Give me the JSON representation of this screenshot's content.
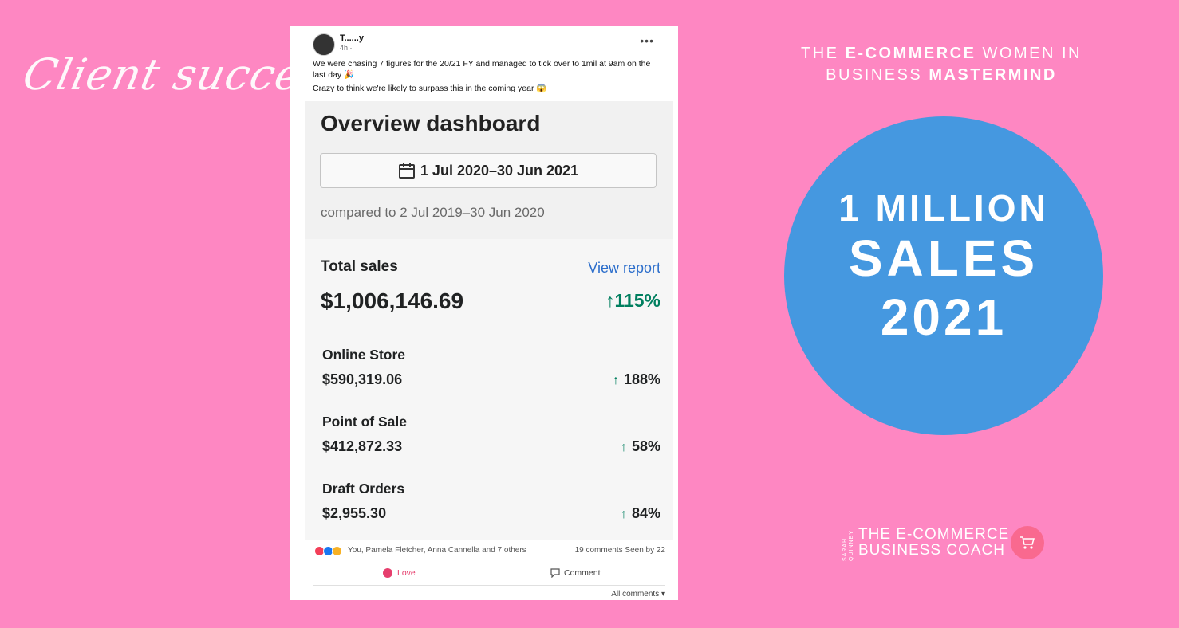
{
  "left_panel": {
    "script_title": "Client success"
  },
  "headline": {
    "part1": "THE ",
    "bold1": "E-COMMERCE",
    "part2": " WOMEN IN BUSINESS ",
    "bold2": "MASTERMIND"
  },
  "badge": {
    "line1": "1 MILLION",
    "line2": "SALES",
    "line3": "2021",
    "color": "#4598e0"
  },
  "logo": {
    "vertical": "SARAH QUINNEY",
    "line1": "THE E-COMMERCE",
    "line2": "BUSINESS COACH",
    "icon": "cart-icon"
  },
  "post": {
    "author": "T......y",
    "time": "4h ·",
    "text_line1": "We were chasing 7 figures for the 20/21 FY and managed to tick over to 1mil at 9am on the last day 🎉",
    "text_line2": "Crazy to think we're likely to surpass this in the coming year 😱",
    "more_icon": "ellipsis-icon"
  },
  "dashboard": {
    "title": "Overview dashboard",
    "date_range": "1 Jul 2020–30 Jun 2021",
    "compared": "compared to 2 Jul 2019–30 Jun 2020",
    "total_sales_label": "Total sales",
    "view_report": "View report",
    "total_sales_value": "$1,006,146.69",
    "total_change": "↑115%",
    "rows": [
      {
        "label": "Online Store",
        "value": "$590,319.06",
        "change": "188%"
      },
      {
        "label": "Point of Sale",
        "value": "$412,872.33",
        "change": "58%"
      },
      {
        "label": "Draft Orders",
        "value": "$2,955.30",
        "change": "84%"
      }
    ],
    "arrow": "↑"
  },
  "footer": {
    "reactions": "You, Pamela Fletcher, Anna Cannella and 7 others",
    "counts": "19 comments  Seen by 22",
    "love": "Love",
    "comment": "Comment",
    "all_comments": "All comments ▾"
  }
}
